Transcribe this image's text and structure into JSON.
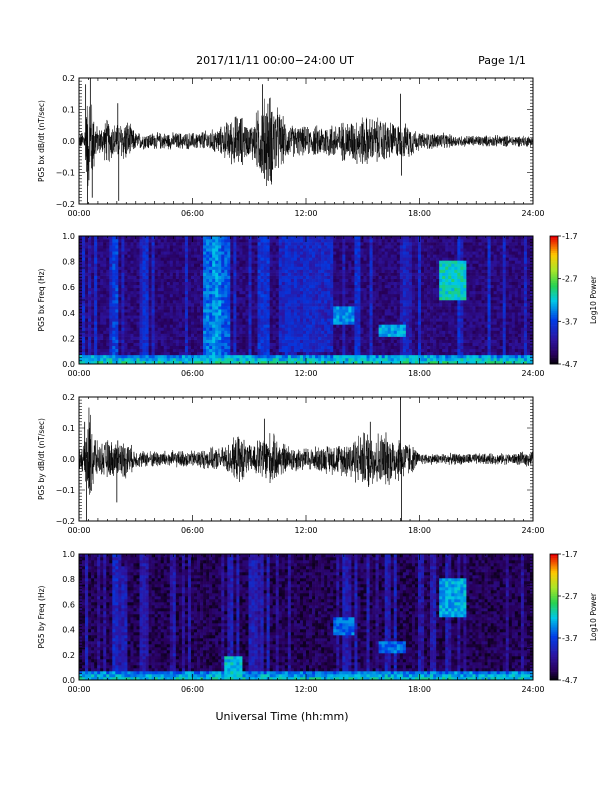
{
  "header": {
    "title": "2017/11/11  00:00−24:00 UT",
    "page": "Page 1/1"
  },
  "footer": {
    "xlabel": "Universal Time (hh:mm)"
  },
  "colors": {
    "background": "#ffffff",
    "axes": "#000000",
    "trace": "#000000"
  },
  "chart_data": [
    {
      "type": "line",
      "ylabel": "PG5 bx dB/dt (nT/sec)",
      "xlim_hours": [
        0,
        24
      ],
      "xticks": [
        "00:00",
        "06:00",
        "12:00",
        "18:00",
        "24:00"
      ],
      "ylim": [
        -0.2,
        0.2
      ],
      "yticks": [
        "0.2",
        "0.1",
        "0.0",
        "−0.1",
        "−0.2"
      ],
      "envelope": {
        "hour": [
          0,
          0.3,
          0.5,
          1,
          1.5,
          2,
          2.5,
          3,
          4,
          5,
          6,
          7,
          7.5,
          8,
          8.5,
          9,
          9.5,
          10,
          11,
          12,
          13,
          14,
          15,
          16,
          17,
          17.5,
          18,
          19,
          20,
          21,
          22,
          23,
          24
        ],
        "amp": [
          0.02,
          0.05,
          0.2,
          0.04,
          0.08,
          0.06,
          0.08,
          0.03,
          0.03,
          0.03,
          0.03,
          0.04,
          0.05,
          0.08,
          0.1,
          0.05,
          0.12,
          0.18,
          0.06,
          0.05,
          0.06,
          0.07,
          0.09,
          0.08,
          0.06,
          0.06,
          0.03,
          0.03,
          0.02,
          0.02,
          0.02,
          0.02,
          0.02
        ]
      },
      "spikes": [
        [
          0.35,
          0.18
        ],
        [
          0.45,
          -0.2
        ],
        [
          0.6,
          0.2
        ],
        [
          0.7,
          -0.18
        ],
        [
          2.05,
          0.12
        ],
        [
          2.1,
          -0.19
        ],
        [
          9.7,
          0.18
        ],
        [
          9.8,
          -0.12
        ],
        [
          17.0,
          0.15
        ],
        [
          17.05,
          -0.11
        ]
      ]
    },
    {
      "type": "heatmap",
      "ylabel": "PG5 bx Freq (Hz)",
      "xlim_hours": [
        0,
        24
      ],
      "xticks": [
        "00:00",
        "06:00",
        "12:00",
        "18:00",
        "24:00"
      ],
      "ylim": [
        0.0,
        1.0
      ],
      "yticks": [
        "1.0",
        "0.8",
        "0.6",
        "0.4",
        "0.2",
        "0.0"
      ],
      "colorbar": {
        "label": "Log10 Power",
        "ticks": [
          "-1.7",
          "-2.7",
          "-3.7",
          "-4.7"
        ],
        "range": [
          -4.7,
          -1.7
        ]
      },
      "background_level": -4.3,
      "low_freq_level": -3.0,
      "features": [
        {
          "t0": 1.7,
          "t1": 2.0,
          "f0": 0.0,
          "f1": 1.0,
          "level": -3.7
        },
        {
          "t0": 6.5,
          "t1": 7.0,
          "f0": 0.0,
          "f1": 1.0,
          "level": -3.5
        },
        {
          "t0": 7.1,
          "t1": 7.5,
          "f0": 0.0,
          "f1": 1.0,
          "level": -3.4
        },
        {
          "t0": 7.6,
          "t1": 8.0,
          "f0": 0.0,
          "f1": 1.0,
          "level": -3.6
        },
        {
          "t0": 9.5,
          "t1": 10.0,
          "f0": 0.0,
          "f1": 1.0,
          "level": -3.8
        },
        {
          "t0": 10.5,
          "t1": 13.5,
          "f0": 0.1,
          "f1": 1.0,
          "level": -3.9
        },
        {
          "t0": 13.5,
          "t1": 14.5,
          "f0": 0.3,
          "f1": 0.45,
          "level": -3.4
        },
        {
          "t0": 15.8,
          "t1": 17.3,
          "f0": 0.22,
          "f1": 0.32,
          "level": -3.3
        },
        {
          "t0": 19.0,
          "t1": 20.5,
          "f0": 0.5,
          "f1": 0.82,
          "level": -3.1
        }
      ]
    },
    {
      "type": "line",
      "ylabel": "PG5 by dB/dt (nT/sec)",
      "xlim_hours": [
        0,
        24
      ],
      "xticks": [
        "00:00",
        "06:00",
        "12:00",
        "18:00",
        "24:00"
      ],
      "ylim": [
        -0.2,
        0.2
      ],
      "yticks": [
        "0.2",
        "0.1",
        "0.0",
        "−0.1",
        "−0.2"
      ],
      "envelope": {
        "hour": [
          0,
          0.3,
          0.5,
          1,
          1.5,
          2,
          2.5,
          3,
          4,
          5,
          6,
          7,
          7.5,
          8,
          8.5,
          9,
          9.5,
          10,
          11,
          12,
          13,
          14,
          15,
          16,
          17,
          17.5,
          18,
          19,
          20,
          21,
          22,
          23,
          24
        ],
        "amp": [
          0.03,
          0.06,
          0.2,
          0.05,
          0.07,
          0.06,
          0.07,
          0.03,
          0.03,
          0.03,
          0.03,
          0.04,
          0.04,
          0.06,
          0.09,
          0.05,
          0.07,
          0.1,
          0.05,
          0.04,
          0.05,
          0.06,
          0.1,
          0.1,
          0.08,
          0.06,
          0.02,
          0.02,
          0.02,
          0.02,
          0.02,
          0.02,
          0.03
        ]
      },
      "spikes": [
        [
          0.3,
          0.12
        ],
        [
          0.4,
          -0.2
        ],
        [
          0.55,
          0.09
        ],
        [
          2.0,
          -0.14
        ],
        [
          2.05,
          0.06
        ],
        [
          9.8,
          0.13
        ],
        [
          17.0,
          0.2
        ],
        [
          17.05,
          -0.2
        ],
        [
          15.4,
          0.12
        ],
        [
          15.3,
          -0.09
        ]
      ]
    },
    {
      "type": "heatmap",
      "ylabel": "PG5 by Freq (Hz)",
      "xlim_hours": [
        0,
        24
      ],
      "xticks": [
        "00:00",
        "06:00",
        "12:00",
        "18:00",
        "24:00"
      ],
      "ylim": [
        0.0,
        1.0
      ],
      "yticks": [
        "1.0",
        "0.8",
        "0.6",
        "0.4",
        "0.2",
        "0.0"
      ],
      "colorbar": {
        "label": "Log10 Power",
        "ticks": [
          "-1.7",
          "-2.7",
          "-3.7",
          "-4.7"
        ],
        "range": [
          -4.7,
          -1.7
        ]
      },
      "background_level": -4.45,
      "low_freq_level": -3.1,
      "features": [
        {
          "t0": 1.7,
          "t1": 2.0,
          "f0": 0.0,
          "f1": 1.0,
          "level": -3.9
        },
        {
          "t0": 2.2,
          "t1": 2.5,
          "f0": 0.0,
          "f1": 0.9,
          "level": -4.0
        },
        {
          "t0": 7.7,
          "t1": 8.6,
          "f0": 0.0,
          "f1": 0.2,
          "level": -3.2
        },
        {
          "t0": 13.5,
          "t1": 14.5,
          "f0": 0.35,
          "f1": 0.5,
          "level": -3.5
        },
        {
          "t0": 15.8,
          "t1": 17.3,
          "f0": 0.22,
          "f1": 0.32,
          "level": -3.5
        },
        {
          "t0": 19.0,
          "t1": 20.5,
          "f0": 0.5,
          "f1": 0.82,
          "level": -3.3
        }
      ]
    }
  ]
}
